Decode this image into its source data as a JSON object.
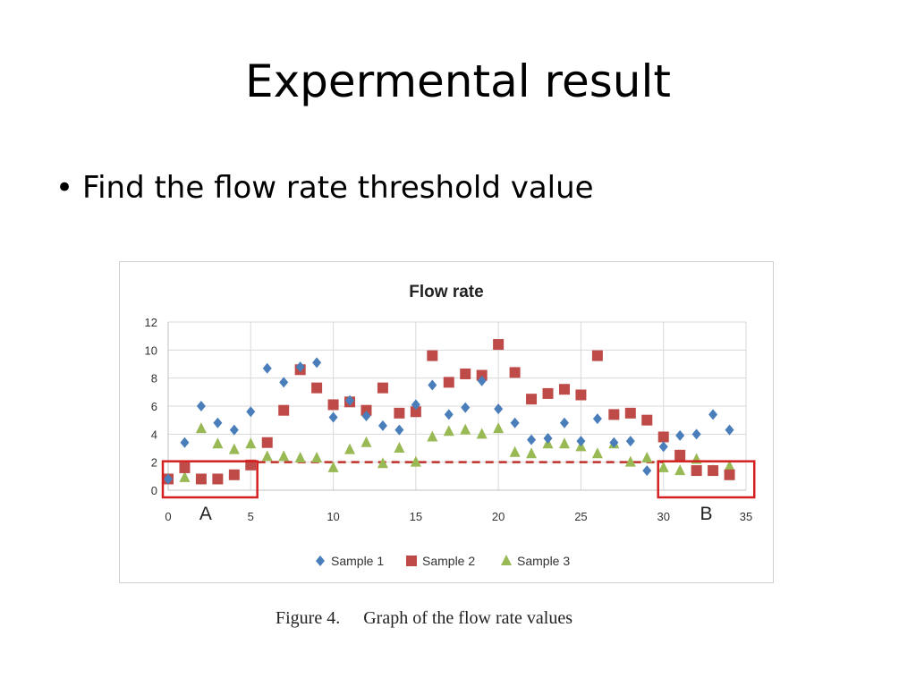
{
  "slide": {
    "title": "Expermental result",
    "bullet": "Find the flow rate threshold value",
    "caption_number": "Figure 4.",
    "caption_text": "Graph of the flow rate values"
  },
  "chart_data": {
    "type": "scatter",
    "title": "Flow rate",
    "xlabel": "",
    "ylabel": "",
    "xlim": [
      0,
      35
    ],
    "ylim": [
      0,
      12
    ],
    "xticks": [
      0,
      5,
      10,
      15,
      20,
      25,
      30,
      35
    ],
    "yticks": [
      0,
      2,
      4,
      6,
      8,
      10,
      12
    ],
    "grid": true,
    "legend_position": "bottom",
    "threshold": 2,
    "regions": [
      {
        "label": "A",
        "x": [
          0,
          5.4
        ],
        "y": [
          0,
          2
        ]
      },
      {
        "label": "B",
        "x": [
          30,
          35.5
        ],
        "y": [
          0,
          2
        ]
      }
    ],
    "series": [
      {
        "name": "Sample 1",
        "marker": "diamond",
        "color": "#4a7ebb",
        "x": [
          0,
          1,
          2,
          3,
          4,
          5,
          6,
          7,
          8,
          9,
          10,
          11,
          12,
          13,
          14,
          15,
          16,
          17,
          18,
          19,
          20,
          21,
          22,
          23,
          24,
          25,
          26,
          27,
          28,
          29,
          30,
          31,
          32,
          33,
          34
        ],
        "y": [
          0.8,
          3.4,
          6.0,
          4.8,
          4.3,
          5.6,
          8.7,
          7.7,
          8.8,
          9.1,
          5.2,
          6.4,
          5.3,
          4.6,
          4.3,
          6.1,
          7.5,
          5.4,
          5.9,
          7.8,
          5.8,
          4.8,
          3.6,
          3.7,
          4.8,
          3.5,
          5.1,
          3.4,
          3.5,
          1.4,
          3.1,
          3.9,
          4.0,
          5.4,
          4.3
        ]
      },
      {
        "name": "Sample 2",
        "marker": "square",
        "color": "#be4b48",
        "x": [
          0,
          1,
          2,
          3,
          4,
          5,
          6,
          7,
          8,
          9,
          10,
          11,
          12,
          13,
          14,
          15,
          16,
          17,
          18,
          19,
          20,
          21,
          22,
          23,
          24,
          25,
          26,
          27,
          28,
          29,
          30,
          31,
          32,
          33,
          34
        ],
        "y": [
          0.8,
          1.6,
          0.8,
          0.8,
          1.1,
          1.8,
          3.4,
          5.7,
          8.6,
          7.3,
          6.1,
          6.3,
          5.7,
          7.3,
          5.5,
          5.6,
          9.6,
          7.7,
          8.3,
          8.2,
          10.4,
          8.4,
          6.5,
          6.9,
          7.2,
          6.8,
          9.6,
          5.4,
          5.5,
          5.0,
          3.8,
          2.5,
          1.4,
          1.4,
          1.1
        ]
      },
      {
        "name": "Sample 3",
        "marker": "triangle",
        "color": "#98b954",
        "x": [
          0,
          1,
          2,
          3,
          4,
          5,
          6,
          7,
          8,
          9,
          10,
          11,
          12,
          13,
          14,
          15,
          16,
          17,
          18,
          19,
          20,
          21,
          22,
          23,
          24,
          25,
          26,
          27,
          28,
          29,
          30,
          31,
          32,
          33,
          34
        ],
        "y": [
          0.8,
          0.9,
          4.4,
          3.3,
          2.9,
          3.3,
          2.4,
          2.4,
          2.3,
          2.3,
          1.6,
          2.9,
          3.4,
          1.9,
          3.0,
          2.0,
          3.8,
          4.2,
          4.3,
          4.0,
          4.4,
          2.7,
          2.6,
          3.3,
          3.3,
          3.1,
          2.6,
          3.3,
          2.0,
          2.3,
          1.6,
          1.4,
          2.2,
          1.4,
          1.7
        ]
      }
    ]
  }
}
